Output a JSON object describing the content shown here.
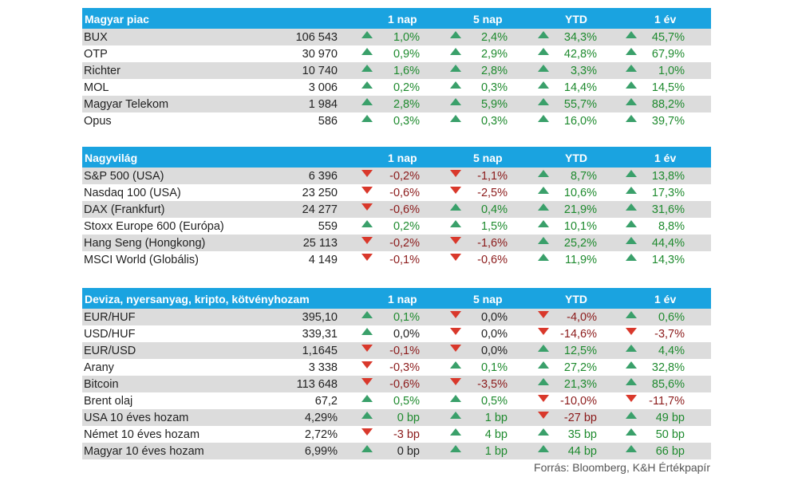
{
  "colors": {
    "header_bg": "#1aa3e0",
    "up": "#3aa06a",
    "down": "#d9382b",
    "pos_text": "#1e8a2e",
    "neg_text": "#8b1a1a",
    "alt_row": "#dcdcdc"
  },
  "columns": [
    "1 nap",
    "5 nap",
    "YTD",
    "1 év"
  ],
  "sections": [
    {
      "title": "Magyar piac",
      "rows": [
        {
          "name": "BUX",
          "value": "106 543",
          "d1": {
            "v": "1,0%",
            "dir": "up"
          },
          "d5": {
            "v": "2,4%",
            "dir": "up"
          },
          "ytd": {
            "v": "34,3%",
            "dir": "up"
          },
          "y1": {
            "v": "45,7%",
            "dir": "up"
          }
        },
        {
          "name": "OTP",
          "value": "30 970",
          "d1": {
            "v": "0,9%",
            "dir": "up"
          },
          "d5": {
            "v": "2,9%",
            "dir": "up"
          },
          "ytd": {
            "v": "42,8%",
            "dir": "up"
          },
          "y1": {
            "v": "67,9%",
            "dir": "up"
          }
        },
        {
          "name": "Richter",
          "value": "10 740",
          "d1": {
            "v": "1,6%",
            "dir": "up"
          },
          "d5": {
            "v": "2,8%",
            "dir": "up"
          },
          "ytd": {
            "v": "3,3%",
            "dir": "up"
          },
          "y1": {
            "v": "1,0%",
            "dir": "up"
          }
        },
        {
          "name": "MOL",
          "value": "3 006",
          "d1": {
            "v": "0,2%",
            "dir": "up"
          },
          "d5": {
            "v": "0,3%",
            "dir": "up"
          },
          "ytd": {
            "v": "14,4%",
            "dir": "up"
          },
          "y1": {
            "v": "14,5%",
            "dir": "up"
          }
        },
        {
          "name": "Magyar Telekom",
          "value": "1 984",
          "d1": {
            "v": "2,8%",
            "dir": "up"
          },
          "d5": {
            "v": "5,9%",
            "dir": "up"
          },
          "ytd": {
            "v": "55,7%",
            "dir": "up"
          },
          "y1": {
            "v": "88,2%",
            "dir": "up"
          }
        },
        {
          "name": "Opus",
          "value": "586",
          "d1": {
            "v": "0,3%",
            "dir": "up"
          },
          "d5": {
            "v": "0,3%",
            "dir": "up"
          },
          "ytd": {
            "v": "16,0%",
            "dir": "up"
          },
          "y1": {
            "v": "39,7%",
            "dir": "up"
          }
        }
      ]
    },
    {
      "title": "Nagyvilág",
      "rows": [
        {
          "name": "S&P 500 (USA)",
          "value": "6 396",
          "d1": {
            "v": "-0,2%",
            "dir": "down"
          },
          "d5": {
            "v": "-1,1%",
            "dir": "down"
          },
          "ytd": {
            "v": "8,7%",
            "dir": "up"
          },
          "y1": {
            "v": "13,8%",
            "dir": "up"
          }
        },
        {
          "name": "Nasdaq 100 (USA)",
          "value": "23 250",
          "d1": {
            "v": "-0,6%",
            "dir": "down"
          },
          "d5": {
            "v": "-2,5%",
            "dir": "down"
          },
          "ytd": {
            "v": "10,6%",
            "dir": "up"
          },
          "y1": {
            "v": "17,3%",
            "dir": "up"
          }
        },
        {
          "name": "DAX (Frankfurt)",
          "value": "24 277",
          "d1": {
            "v": "-0,6%",
            "dir": "down"
          },
          "d5": {
            "v": "0,4%",
            "dir": "up"
          },
          "ytd": {
            "v": "21,9%",
            "dir": "up"
          },
          "y1": {
            "v": "31,6%",
            "dir": "up"
          }
        },
        {
          "name": "Stoxx Europe 600 (Európa)",
          "value": "559",
          "d1": {
            "v": "0,2%",
            "dir": "up"
          },
          "d5": {
            "v": "1,5%",
            "dir": "up"
          },
          "ytd": {
            "v": "10,1%",
            "dir": "up"
          },
          "y1": {
            "v": "8,8%",
            "dir": "up"
          }
        },
        {
          "name": "Hang Seng (Hongkong)",
          "value": "25 113",
          "d1": {
            "v": "-0,2%",
            "dir": "down"
          },
          "d5": {
            "v": "-1,6%",
            "dir": "down"
          },
          "ytd": {
            "v": "25,2%",
            "dir": "up"
          },
          "y1": {
            "v": "44,4%",
            "dir": "up"
          }
        },
        {
          "name": "MSCI World (Globális)",
          "value": "4 149",
          "d1": {
            "v": "-0,1%",
            "dir": "down"
          },
          "d5": {
            "v": "-0,6%",
            "dir": "down"
          },
          "ytd": {
            "v": "11,9%",
            "dir": "up"
          },
          "y1": {
            "v": "14,3%",
            "dir": "up"
          }
        }
      ]
    },
    {
      "title": "Deviza, nyersanyag, kripto, kötvényhozam",
      "rows": [
        {
          "name": "EUR/HUF",
          "value": "395,10",
          "d1": {
            "v": "0,1%",
            "dir": "up"
          },
          "d5": {
            "v": "0,0%",
            "dir": "down",
            "style": "zero"
          },
          "ytd": {
            "v": "-4,0%",
            "dir": "down"
          },
          "y1": {
            "v": "0,6%",
            "dir": "up"
          }
        },
        {
          "name": "USD/HUF",
          "value": "339,31",
          "d1": {
            "v": "0,0%",
            "dir": "up",
            "style": "zero"
          },
          "d5": {
            "v": "0,0%",
            "dir": "down",
            "style": "zero"
          },
          "ytd": {
            "v": "-14,6%",
            "dir": "down"
          },
          "y1": {
            "v": "-3,7%",
            "dir": "down"
          }
        },
        {
          "name": "EUR/USD",
          "value": "1,1645",
          "d1": {
            "v": "-0,1%",
            "dir": "down"
          },
          "d5": {
            "v": "0,0%",
            "dir": "down",
            "style": "zero"
          },
          "ytd": {
            "v": "12,5%",
            "dir": "up"
          },
          "y1": {
            "v": "4,4%",
            "dir": "up"
          }
        },
        {
          "name": "Arany",
          "value": "3 338",
          "d1": {
            "v": "-0,3%",
            "dir": "down"
          },
          "d5": {
            "v": "0,1%",
            "dir": "up"
          },
          "ytd": {
            "v": "27,2%",
            "dir": "up"
          },
          "y1": {
            "v": "32,8%",
            "dir": "up"
          }
        },
        {
          "name": "Bitcoin",
          "value": "113 648",
          "d1": {
            "v": "-0,6%",
            "dir": "down"
          },
          "d5": {
            "v": "-3,5%",
            "dir": "down"
          },
          "ytd": {
            "v": "21,3%",
            "dir": "up"
          },
          "y1": {
            "v": "85,6%",
            "dir": "up"
          }
        },
        {
          "name": "Brent olaj",
          "value": "67,2",
          "d1": {
            "v": "0,5%",
            "dir": "up"
          },
          "d5": {
            "v": "0,5%",
            "dir": "up"
          },
          "ytd": {
            "v": "-10,0%",
            "dir": "down"
          },
          "y1": {
            "v": "-11,7%",
            "dir": "down"
          }
        },
        {
          "name": "USA 10 éves hozam",
          "value": "4,29%",
          "d1": {
            "v": "0 bp",
            "dir": "up"
          },
          "d5": {
            "v": "1 bp",
            "dir": "up"
          },
          "ytd": {
            "v": "-27 bp",
            "dir": "down"
          },
          "y1": {
            "v": "49 bp",
            "dir": "up"
          }
        },
        {
          "name": "Német 10 éves hozam",
          "value": "2,72%",
          "d1": {
            "v": "-3 bp",
            "dir": "down"
          },
          "d5": {
            "v": "4 bp",
            "dir": "up"
          },
          "ytd": {
            "v": "35 bp",
            "dir": "up"
          },
          "y1": {
            "v": "50 bp",
            "dir": "up"
          }
        },
        {
          "name": "Magyar 10 éves hozam",
          "value": "6,99%",
          "d1": {
            "v": "0 bp",
            "dir": "up",
            "style": "plain"
          },
          "d5": {
            "v": "1 bp",
            "dir": "up"
          },
          "ytd": {
            "v": "44 bp",
            "dir": "up"
          },
          "y1": {
            "v": "66 bp",
            "dir": "up"
          }
        }
      ]
    }
  ],
  "source": "Forrás: Bloomberg, K&H Értékpapír"
}
